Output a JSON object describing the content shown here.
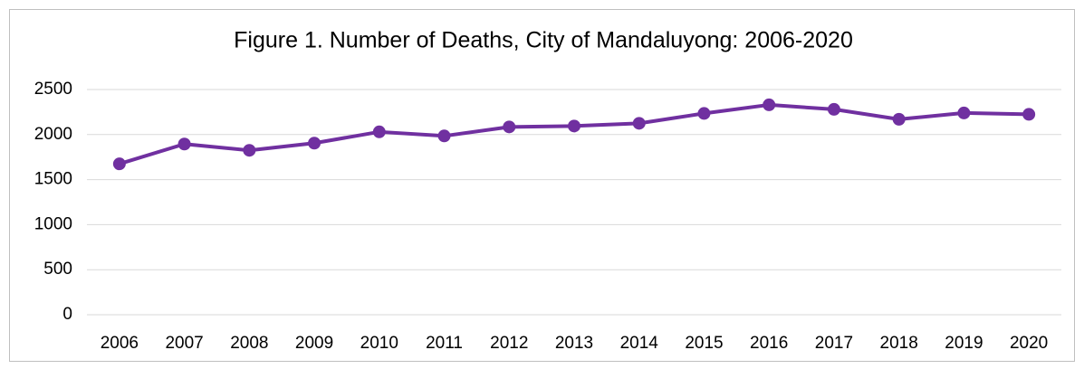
{
  "chart_data": {
    "type": "line",
    "title": "Figure 1. Number of Deaths, City of Mandaluyong: 2006-2020",
    "categories": [
      "2006",
      "2007",
      "2008",
      "2009",
      "2010",
      "2011",
      "2012",
      "2013",
      "2014",
      "2015",
      "2016",
      "2017",
      "2018",
      "2019",
      "2020"
    ],
    "values": [
      1675,
      1895,
      1825,
      1905,
      2030,
      1985,
      2085,
      2095,
      2125,
      2235,
      2330,
      2280,
      2170,
      2240,
      2225
    ],
    "color": "#7030a0",
    "ylim": [
      0,
      2500
    ],
    "yticks": [
      0,
      500,
      1000,
      1500,
      2000,
      2500
    ],
    "grid": true
  }
}
